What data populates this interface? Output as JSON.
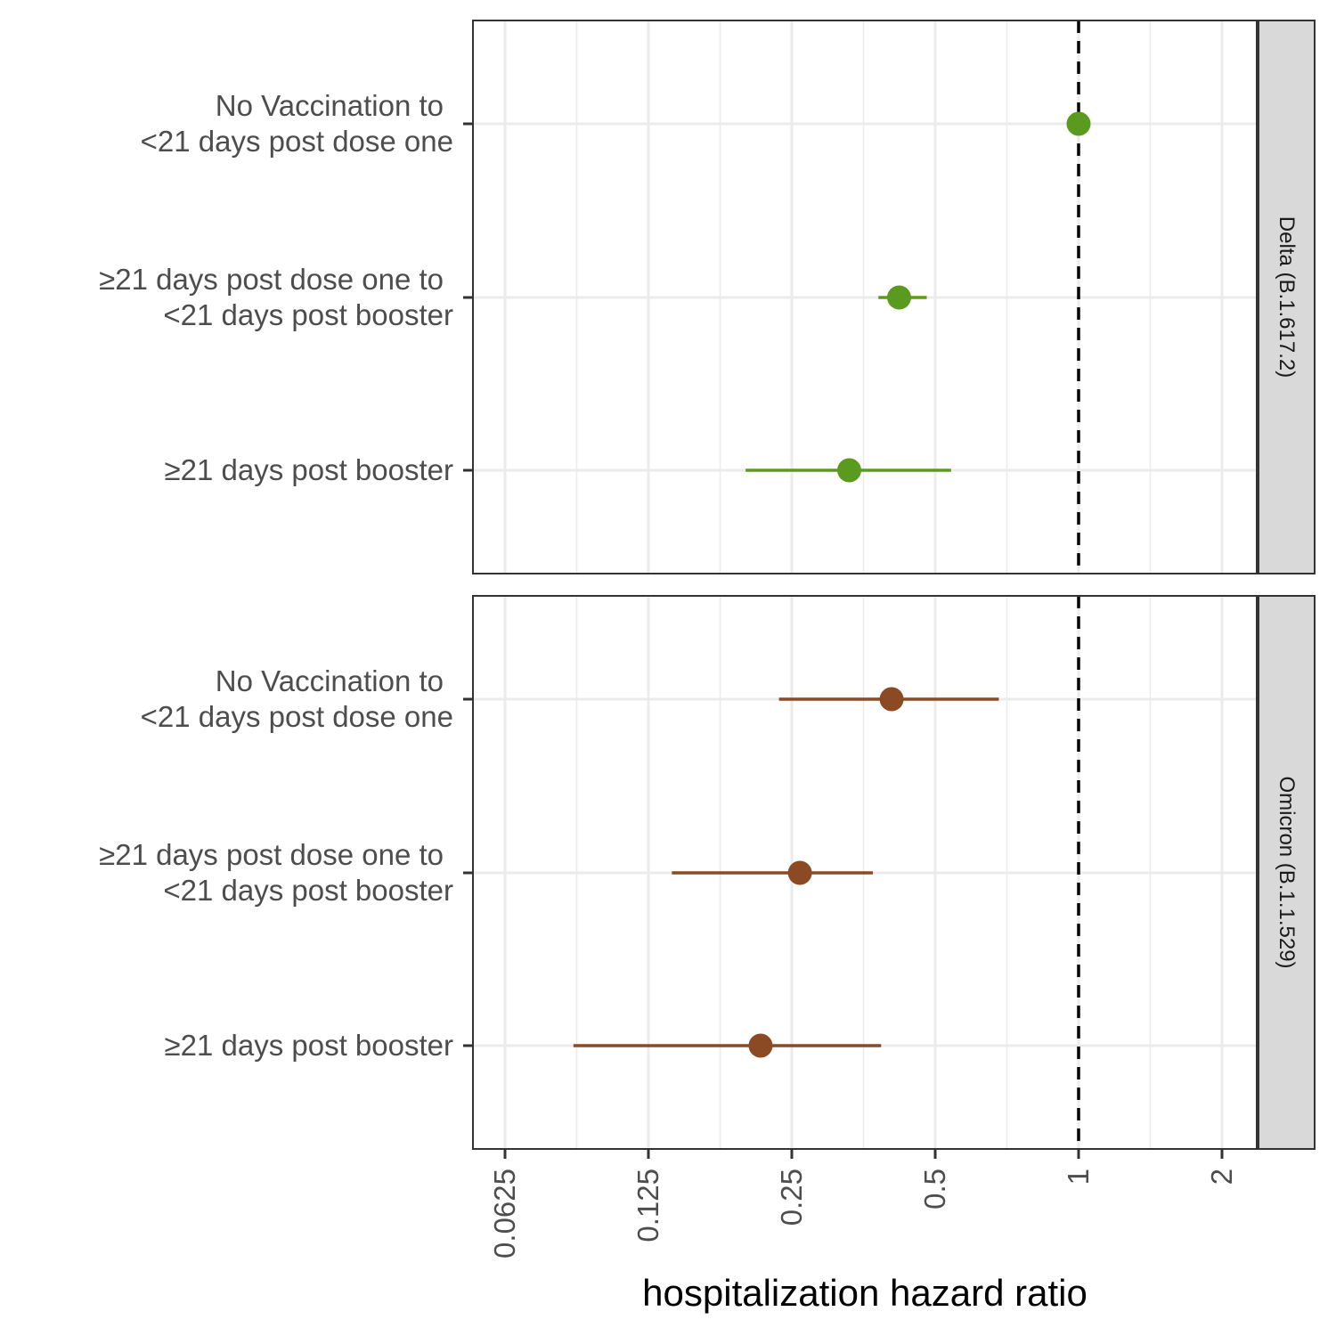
{
  "chart_data": {
    "type": "forest",
    "xlabel": "hospitalization hazard ratio",
    "x_scale": "log2",
    "xlim": [
      0.0548,
      2.5
    ],
    "x_ticks": [
      0.0625,
      0.125,
      0.25,
      0.5,
      1,
      2
    ],
    "x_tick_labels": [
      "0.0625",
      "0.125",
      "0.25",
      "0.5",
      "1",
      "2"
    ],
    "reference_line": 1,
    "grid": true,
    "categories": [
      [
        "No Vaccination to",
        "<21 days post dose one"
      ],
      [
        "≥21 days post dose one to",
        "<21 days post booster"
      ],
      [
        "≥21 days post booster"
      ]
    ],
    "panels": [
      {
        "strip": "Delta (B.1.617.2)",
        "color": "#5a9a1e",
        "points": [
          {
            "estimate": 1.0,
            "lower": null,
            "upper": null
          },
          {
            "estimate": 0.42,
            "lower": 0.38,
            "upper": 0.48
          },
          {
            "estimate": 0.33,
            "lower": 0.2,
            "upper": 0.54
          }
        ]
      },
      {
        "strip": "Omicron (B.1.1.529)",
        "color": "#8b4a23",
        "points": [
          {
            "estimate": 0.405,
            "lower": 0.235,
            "upper": 0.68
          },
          {
            "estimate": 0.26,
            "lower": 0.14,
            "upper": 0.37
          },
          {
            "estimate": 0.215,
            "lower": 0.087,
            "upper": 0.385
          }
        ]
      }
    ]
  }
}
